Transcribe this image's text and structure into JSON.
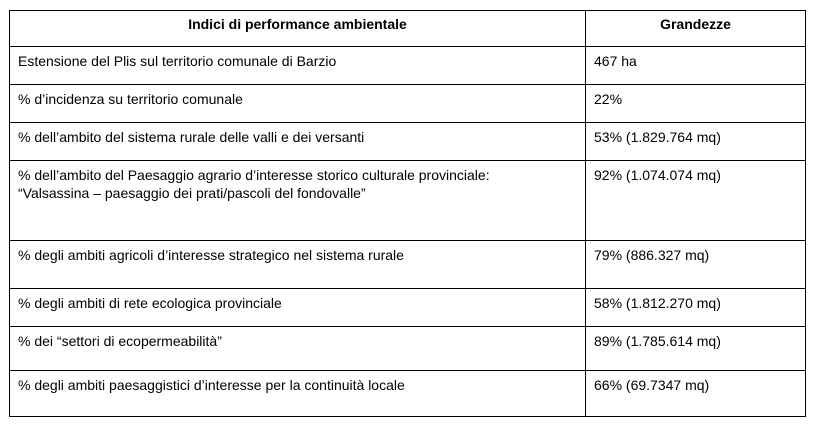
{
  "table": {
    "headers": [
      "Indici di performance ambientale",
      "Grandezze"
    ],
    "rows": [
      {
        "index": [
          "Estensione del Plis sul territorio comunale di Barzio"
        ],
        "value": "467 ha"
      },
      {
        "index": [
          "% d’incidenza su territorio comunale"
        ],
        "value": "22%"
      },
      {
        "index": [
          "% dell’ambito del sistema rurale delle valli e dei versanti"
        ],
        "value": "53% (1.829.764 mq)"
      },
      {
        "index": [
          "% dell’ambito del Paesaggio agrario d’interesse storico culturale provinciale:",
          "“Valsassina – paesaggio dei prati/pascoli del fondovalle”"
        ],
        "value": "92% (1.074.074 mq)"
      },
      {
        "index": [
          "% degli ambiti agricoli d’interesse strategico nel sistema rurale"
        ],
        "value": "79% (886.327 mq)"
      },
      {
        "index": [
          "% degli ambiti di rete ecologica provinciale"
        ],
        "value": "58% (1.812.270 mq)"
      },
      {
        "index": [
          "% dei “settori di ecopermeabilità”"
        ],
        "value": "89% (1.785.614 mq)"
      },
      {
        "index": [
          "% degli ambiti paesaggistici d’interesse per la continuità locale"
        ],
        "value": "66% (69.7347 mq)"
      }
    ]
  }
}
